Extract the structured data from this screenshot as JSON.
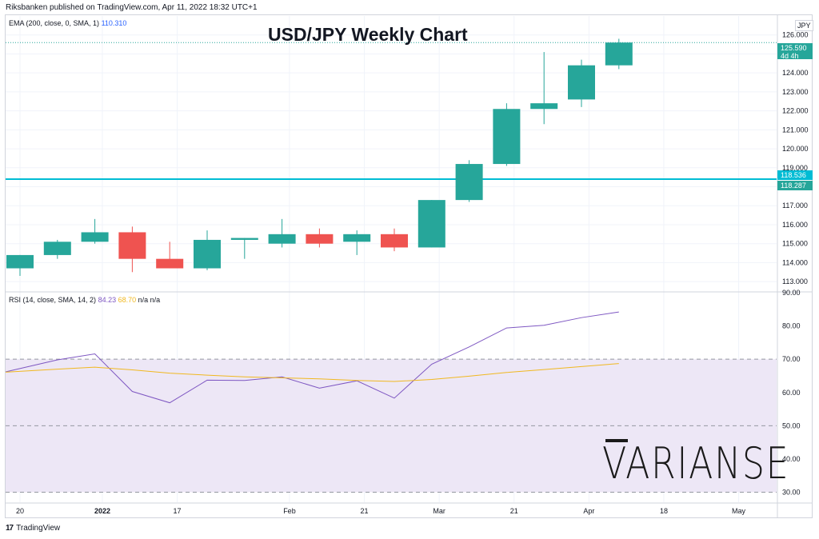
{
  "header": {
    "published": "Riksbanken published on TradingView.com, Apr 11, 2022 18:32 UTC+1"
  },
  "footer": {
    "brand": "TradingView",
    "logo_glyph": "17"
  },
  "watermark": "VARIANSE",
  "currency": "JPY",
  "indicators": {
    "ema": {
      "label": "EMA (200, close, 0, SMA, 1)",
      "value": "110.310"
    },
    "rsi": {
      "label": "RSI (14, close, SMA, 14, 2)",
      "value": "84.23",
      "sma": "68.70",
      "extra": "n/a  n/a"
    }
  },
  "tags": {
    "last_price": "125.590",
    "countdown": "4d 4h",
    "line_a": "118.536",
    "line_b": "118.287"
  },
  "colors": {
    "up": "#26a69a",
    "down": "#ef5350",
    "level_line": "#00bcd4",
    "rsi_line": "#7e57c2",
    "rsi_sma": "#f0b820",
    "rsi_band": "#ede7f6",
    "grid": "#f0f3fa"
  },
  "chart_data": [
    {
      "type": "candlestick",
      "title": "USD/JPY Weekly Chart",
      "ylim": [
        112.5,
        127
      ],
      "y_ticks": [
        113,
        114,
        115,
        116,
        117,
        118,
        119,
        120,
        121,
        122,
        123,
        124,
        125,
        126
      ],
      "x_tick_labels": [
        "20",
        "2022",
        "17",
        "Feb",
        "21",
        "Mar",
        "21",
        "Apr",
        "18",
        "May"
      ],
      "x_tick_index": [
        0,
        2.2,
        4.2,
        7.2,
        9.2,
        11.2,
        13.2,
        15.2,
        17.2,
        19.2
      ],
      "horizontal_level": 118.4,
      "candles": [
        {
          "o": 113.7,
          "h": 114.4,
          "l": 113.3,
          "c": 114.4
        },
        {
          "o": 114.4,
          "h": 115.2,
          "l": 114.2,
          "c": 115.1
        },
        {
          "o": 115.1,
          "h": 116.3,
          "l": 115.0,
          "c": 115.6
        },
        {
          "o": 115.6,
          "h": 115.9,
          "l": 113.5,
          "c": 114.2
        },
        {
          "o": 114.2,
          "h": 115.1,
          "l": 113.7,
          "c": 113.7
        },
        {
          "o": 113.7,
          "h": 115.7,
          "l": 113.6,
          "c": 115.2
        },
        {
          "o": 115.2,
          "h": 115.3,
          "l": 114.2,
          "c": 115.3
        },
        {
          "o": 115.0,
          "h": 116.3,
          "l": 114.8,
          "c": 115.5
        },
        {
          "o": 115.5,
          "h": 115.8,
          "l": 114.8,
          "c": 115.0
        },
        {
          "o": 115.1,
          "h": 115.7,
          "l": 114.4,
          "c": 115.5
        },
        {
          "o": 115.5,
          "h": 115.8,
          "l": 114.6,
          "c": 114.8
        },
        {
          "o": 114.8,
          "h": 117.3,
          "l": 114.8,
          "c": 117.3
        },
        {
          "o": 117.3,
          "h": 119.4,
          "l": 117.2,
          "c": 119.2
        },
        {
          "o": 119.2,
          "h": 122.4,
          "l": 119.1,
          "c": 122.1
        },
        {
          "o": 122.1,
          "h": 125.1,
          "l": 121.3,
          "c": 122.4
        },
        {
          "o": 122.6,
          "h": 124.7,
          "l": 122.2,
          "c": 124.4
        },
        {
          "o": 124.4,
          "h": 125.8,
          "l": 124.2,
          "c": 125.6
        }
      ]
    },
    {
      "type": "line",
      "title": "RSI (14, close, SMA, 14, 2)",
      "ylim": [
        27,
        90
      ],
      "y_ticks": [
        30,
        40,
        50,
        60,
        70,
        80,
        90
      ],
      "band": [
        30,
        70
      ],
      "midline": 50,
      "series": [
        {
          "name": "RSI",
          "values": [
            66.2,
            69.8,
            71.6,
            60.3,
            56.9,
            63.7,
            63.6,
            64.7,
            61.3,
            63.5,
            58.3,
            68.5,
            73.7,
            79.4,
            80.2,
            82.5,
            84.2
          ]
        },
        {
          "name": "RSI SMA",
          "values": [
            66.1,
            67.0,
            67.6,
            66.8,
            65.8,
            65.2,
            64.7,
            64.4,
            64.1,
            63.6,
            63.3,
            63.9,
            64.9,
            66.0,
            66.9,
            67.8,
            68.7
          ]
        }
      ]
    }
  ]
}
